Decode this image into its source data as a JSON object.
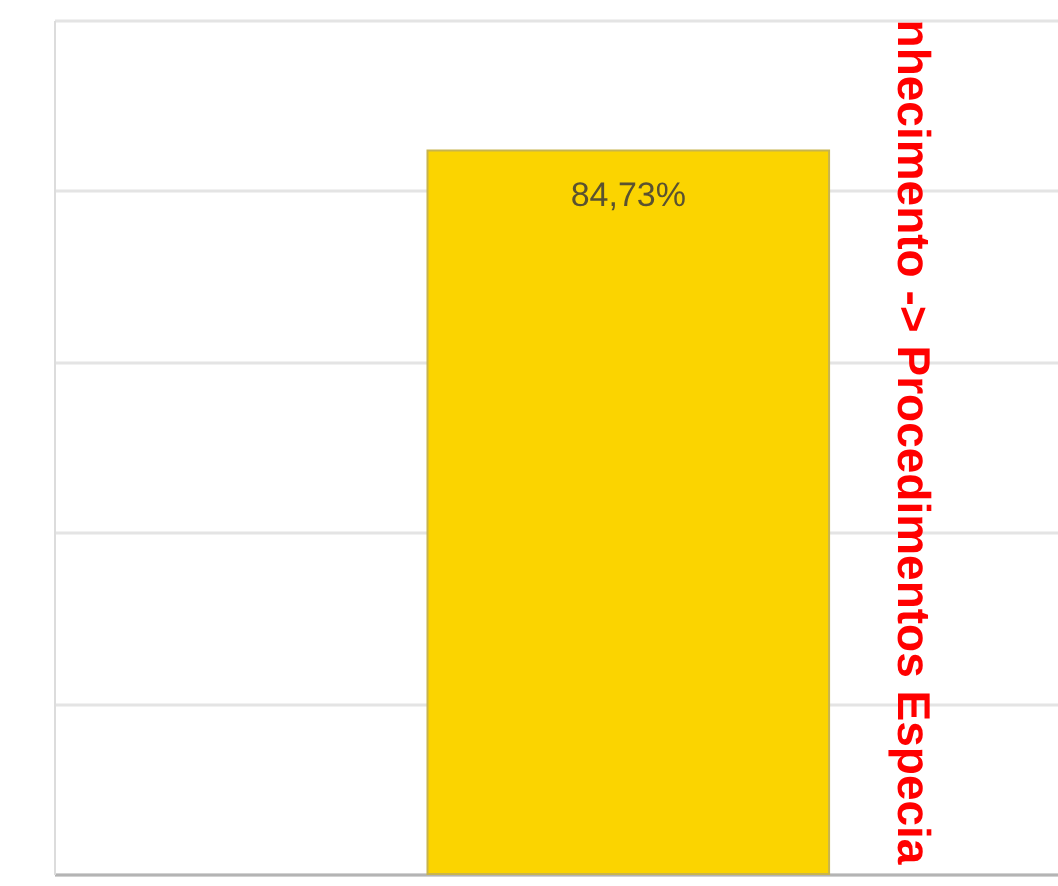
{
  "chart_data": {
    "type": "bar",
    "categories": [
      null
    ],
    "values": [
      84.73
    ],
    "value_labels": [
      "84,73%"
    ],
    "color": "#fbd400",
    "ylim": [
      0,
      100
    ],
    "yticks": [
      {
        "value": 0,
        "label": null
      },
      {
        "value": 20,
        "label": null
      },
      {
        "value": 40,
        "label": null
      },
      {
        "value": 60,
        "label": null
      },
      {
        "value": 80,
        "label": null
      },
      {
        "value": 100,
        "label": null
      }
    ],
    "grid": "y",
    "annotations": [
      "nhecimento -> Procedimentos Especia"
    ]
  }
}
